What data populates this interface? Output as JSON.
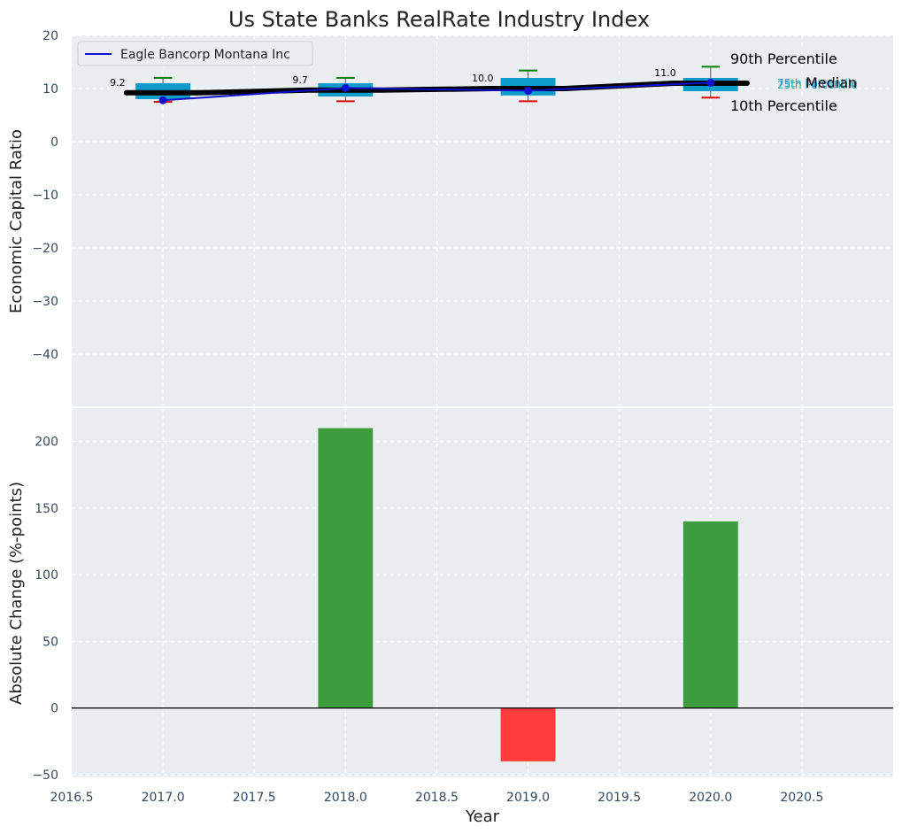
{
  "chart_data": {
    "title": "Us State Banks RealRate Industry Index",
    "xlabel": "Year",
    "xlim": [
      2016.5,
      2021.0
    ],
    "xticks": [
      "2016.5",
      "2017.0",
      "2017.5",
      "2018.0",
      "2018.5",
      "2019.0",
      "2019.5",
      "2020.0",
      "2020.5"
    ],
    "xtick_values": [
      2016.5,
      2017.0,
      2017.5,
      2018.0,
      2018.5,
      2019.0,
      2019.5,
      2020.0,
      2020.5
    ],
    "top_panel": {
      "type": "box",
      "ylabel": "Economic Capital Ratio",
      "ylim": [
        -50,
        20
      ],
      "yticks": [
        20,
        10,
        0,
        -10,
        -20,
        -30,
        -40
      ],
      "ytick_labels": [
        "20",
        "10",
        "0",
        "−10",
        "−20",
        "−30",
        "−40"
      ],
      "boxes": [
        {
          "year": 2017,
          "p10": 7.5,
          "q1": 8.0,
          "median": 9.2,
          "q3": 11.0,
          "p90": 12.0,
          "label": "9.2"
        },
        {
          "year": 2018,
          "p10": 7.6,
          "q1": 8.5,
          "median": 9.7,
          "q3": 11.0,
          "p90": 12.0,
          "label": "9.7"
        },
        {
          "year": 2019,
          "p10": 7.6,
          "q1": 8.7,
          "median": 10.0,
          "q3": 12.0,
          "p90": 13.4,
          "label": "10.0"
        },
        {
          "year": 2020,
          "p10": 8.3,
          "q1": 9.5,
          "median": 11.0,
          "q3": 12.0,
          "p90": 14.1,
          "label": "11.0"
        }
      ],
      "series": [
        {
          "name": "Eagle Bancorp Montana Inc",
          "x": [
            2017,
            2018,
            2019,
            2020
          ],
          "values": [
            7.8,
            10.1,
            9.6,
            11.1
          ]
        }
      ],
      "legend": {
        "position": "top-left",
        "entries": [
          "Eagle Bancorp Montana Inc"
        ]
      },
      "annotations": {
        "p90": "90th Percentile",
        "median": "Median",
        "p10": "10th Percentile",
        "q3": "75th Percentile",
        "q1": "25th Percentile"
      }
    },
    "bottom_panel": {
      "type": "bar",
      "ylabel": "Absolute Change (%-points)",
      "ylim": [
        -52,
        225
      ],
      "yticks": [
        200,
        150,
        100,
        50,
        0,
        -50
      ],
      "ytick_labels": [
        "200",
        "150",
        "100",
        "50",
        "0",
        "−50"
      ],
      "categories": [
        2018,
        2019,
        2020
      ],
      "values": [
        210,
        -40,
        140
      ]
    },
    "colors": {
      "plot_bg": "#eaeef0",
      "box": "#0e9ccc",
      "median": "#000000",
      "p90_whisker": "#008000",
      "p10_whisker": "#e00000",
      "series_line": "#1010d0",
      "bar_positive": "#3d9c3d",
      "bar_negative": "#ff3d3d"
    }
  }
}
